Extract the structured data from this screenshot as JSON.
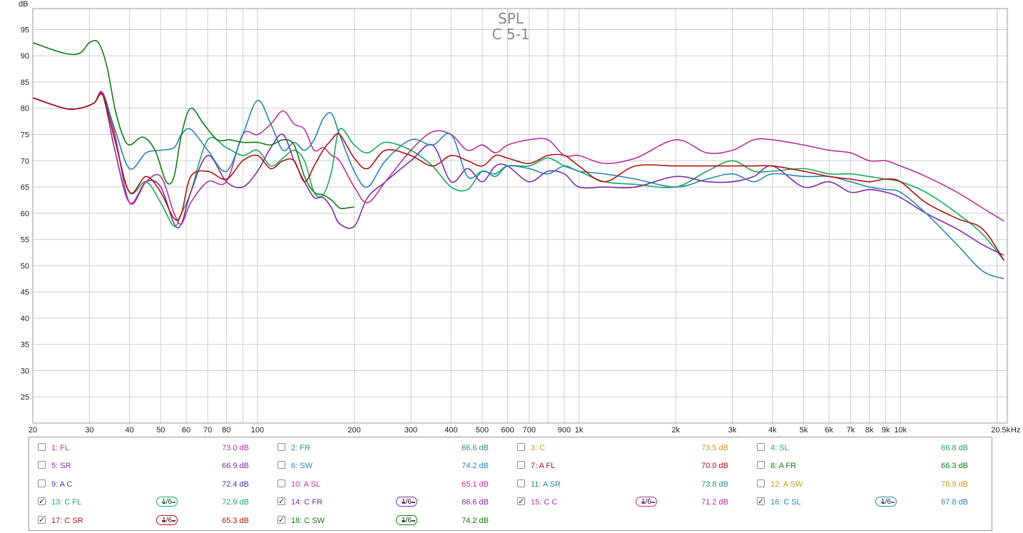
{
  "chart_data": {
    "type": "line",
    "title": "SPL",
    "subtitle": "C 5-1",
    "ylabel": "dB",
    "xlabel": "Hz",
    "xscale": "log",
    "xlim": [
      20,
      21500
    ],
    "ylim": [
      20,
      99
    ],
    "grid": true,
    "yticks": [
      25,
      30,
      35,
      40,
      45,
      50,
      55,
      60,
      65,
      70,
      75,
      80,
      85,
      90,
      95
    ],
    "xticks": [
      {
        "v": 20,
        "l": "20"
      },
      {
        "v": 30,
        "l": "30"
      },
      {
        "v": 40,
        "l": "40"
      },
      {
        "v": 50,
        "l": "50"
      },
      {
        "v": 60,
        "l": "60"
      },
      {
        "v": 70,
        "l": "70"
      },
      {
        "v": 80,
        "l": "80"
      },
      {
        "v": 100,
        "l": "100"
      },
      {
        "v": 200,
        "l": "200"
      },
      {
        "v": 300,
        "l": "300"
      },
      {
        "v": 400,
        "l": "400"
      },
      {
        "v": 500,
        "l": "500"
      },
      {
        "v": 600,
        "l": "600"
      },
      {
        "v": 700,
        "l": "700"
      },
      {
        "v": 900,
        "l": "900"
      },
      {
        "v": 1000,
        "l": "1k"
      },
      {
        "v": 2000,
        "l": "2k"
      },
      {
        "v": 3000,
        "l": "3k"
      },
      {
        "v": 4000,
        "l": "4k"
      },
      {
        "v": 5000,
        "l": "5k"
      },
      {
        "v": 6000,
        "l": "6k"
      },
      {
        "v": 7000,
        "l": "7k"
      },
      {
        "v": 8000,
        "l": "8k"
      },
      {
        "v": 9000,
        "l": "9k"
      },
      {
        "v": 10000,
        "l": "10k"
      },
      {
        "v": 20500,
        "l": "20.5k"
      }
    ],
    "series": [
      {
        "name": "13: C FL",
        "color": "#1aaa5a",
        "x": [
          20,
          25,
          28,
          31,
          33,
          36,
          40,
          45,
          50,
          55,
          58,
          62,
          70,
          80,
          90,
          100,
          110,
          120,
          130,
          140,
          150,
          160,
          170,
          180,
          200,
          220,
          250,
          300,
          350,
          400,
          450,
          500,
          550,
          600,
          700,
          800,
          900,
          1000,
          1200,
          1500,
          2000,
          2500,
          3000,
          3500,
          4000,
          5000,
          6000,
          7000,
          8000,
          9000,
          10000,
          12000,
          15000,
          18000,
          21000
        ],
        "y": [
          82,
          80,
          80,
          81,
          82.5,
          74,
          64,
          66,
          62,
          57.5,
          60,
          64,
          74,
          72.5,
          71,
          72,
          69,
          70.5,
          72,
          70,
          64,
          63.5,
          68,
          76,
          73,
          71.5,
          73.5,
          72,
          69,
          65,
          64.5,
          68,
          67,
          69,
          69,
          70.5,
          69,
          68,
          66,
          65.5,
          65,
          68,
          70,
          68,
          68,
          68.5,
          67.5,
          67.5,
          67,
          66.5,
          66,
          64,
          60,
          56,
          51
        ]
      },
      {
        "name": "14: C FR",
        "color": "#7a2ca8",
        "x": [
          20,
          25,
          28,
          31,
          33,
          36,
          40,
          45,
          50,
          55,
          58,
          62,
          70,
          80,
          90,
          100,
          110,
          120,
          130,
          140,
          150,
          160,
          170,
          180,
          200,
          220,
          250,
          300,
          350,
          400,
          450,
          500,
          550,
          600,
          700,
          800,
          900,
          1000,
          1200,
          1500,
          2000,
          2500,
          3000,
          3500,
          4000,
          5000,
          6000,
          7000,
          8000,
          9000,
          10000,
          12000,
          15000,
          18000,
          21000
        ],
        "y": [
          82,
          80,
          80,
          81,
          82.5,
          72,
          62,
          66,
          65,
          58,
          58,
          64,
          71,
          66,
          65,
          68,
          72.5,
          75,
          70,
          66,
          63,
          63,
          61,
          58,
          57.5,
          63,
          66,
          70,
          73,
          66,
          68.5,
          66,
          69,
          69,
          66,
          68,
          67.5,
          65,
          65,
          65,
          67,
          66,
          66,
          67,
          69,
          65,
          66,
          64,
          64.5,
          64,
          63,
          60,
          57,
          54,
          52
        ]
      },
      {
        "name": "15: C C",
        "color": "#b83298",
        "x": [
          20,
          25,
          28,
          31,
          33,
          36,
          40,
          45,
          50,
          55,
          58,
          62,
          70,
          80,
          90,
          100,
          110,
          120,
          130,
          140,
          150,
          160,
          170,
          180,
          200,
          220,
          250,
          300,
          350,
          400,
          450,
          500,
          550,
          600,
          700,
          800,
          900,
          1000,
          1200,
          1500,
          2000,
          2500,
          3000,
          3500,
          4000,
          5000,
          6000,
          7000,
          8000,
          9000,
          10000,
          12000,
          15000,
          18000,
          21000
        ],
        "y": [
          82,
          80,
          80,
          81,
          83,
          75,
          62,
          66,
          67,
          60,
          58,
          62,
          66,
          66,
          75,
          75,
          77,
          79.5,
          77,
          76,
          72,
          72.5,
          71,
          70,
          65,
          62,
          66,
          72,
          75.5,
          75,
          72,
          73,
          71.5,
          73,
          74,
          74,
          71,
          71,
          69.5,
          70.5,
          74,
          71.5,
          72,
          74,
          74,
          73,
          72,
          71.5,
          70,
          70,
          69,
          67,
          64,
          61,
          58.5
        ]
      },
      {
        "name": "16: C SL",
        "color": "#2a86b0",
        "x": [
          20,
          25,
          28,
          31,
          33,
          36,
          40,
          45,
          50,
          55,
          58,
          62,
          70,
          80,
          90,
          100,
          110,
          120,
          130,
          140,
          150,
          160,
          170,
          180,
          200,
          220,
          250,
          300,
          350,
          400,
          450,
          500,
          550,
          600,
          700,
          800,
          900,
          1000,
          1200,
          1500,
          2000,
          2500,
          3000,
          3500,
          4000,
          5000,
          6000,
          7000,
          8000,
          9000,
          10000,
          12000,
          15000,
          18000,
          21000
        ],
        "y": [
          82,
          80,
          80,
          81,
          82.5,
          76,
          68.5,
          71.5,
          72,
          72.5,
          75,
          76,
          72,
          68,
          75,
          81.5,
          77,
          72,
          73.5,
          72,
          74,
          78,
          79,
          75,
          68,
          65,
          70,
          74,
          73,
          75,
          67,
          68,
          67.5,
          69,
          68.5,
          67.5,
          69,
          68,
          67.5,
          66.5,
          65,
          66.5,
          67.5,
          66,
          67.5,
          67,
          67,
          66,
          65,
          64.5,
          64,
          60,
          54,
          49,
          47.5
        ]
      },
      {
        "name": "17: C SR",
        "color": "#b01212",
        "x": [
          20,
          25,
          28,
          31,
          33,
          36,
          40,
          45,
          50,
          55,
          58,
          62,
          70,
          80,
          90,
          100,
          110,
          120,
          130,
          140,
          150,
          160,
          170,
          180,
          200,
          220,
          250,
          300,
          350,
          400,
          450,
          500,
          550,
          600,
          700,
          800,
          900,
          1000,
          1200,
          1500,
          2000,
          2500,
          3000,
          3500,
          4000,
          5000,
          6000,
          7000,
          8000,
          9000,
          10000,
          12000,
          15000,
          18000,
          21000
        ],
        "y": [
          82,
          80,
          80,
          81,
          82.5,
          74,
          64,
          67,
          64,
          59,
          60,
          67,
          68,
          66.5,
          70,
          71,
          68.5,
          70,
          70,
          66,
          69,
          72,
          74,
          75,
          70.5,
          68.5,
          72,
          71,
          69,
          71,
          70,
          69,
          71,
          70.5,
          69.5,
          71,
          71,
          69,
          66,
          69,
          69,
          69,
          69,
          69,
          69,
          68,
          67,
          66.5,
          66,
          66.5,
          66,
          62,
          59,
          57,
          51
        ]
      },
      {
        "name": "18: C SW",
        "color": "#137a13",
        "x": [
          20,
          25,
          28,
          30,
          32,
          34,
          36,
          38,
          40,
          44,
          48,
          52,
          55,
          58,
          62,
          68,
          75,
          82,
          90,
          100,
          110,
          120,
          130,
          140,
          150,
          160,
          170,
          180,
          190,
          200
        ],
        "y": [
          92.5,
          90.5,
          90.5,
          92.5,
          92.5,
          88,
          80,
          75,
          73,
          74.5,
          72,
          66,
          67,
          75,
          80,
          77,
          74,
          74,
          73.5,
          73.5,
          73,
          74,
          73,
          67,
          64,
          63.5,
          62.5,
          61,
          61,
          61.2
        ]
      }
    ]
  },
  "legend": {
    "items": [
      {
        "label": "1: FL",
        "value": "73.0 dB",
        "color": "#b83298",
        "checked": false
      },
      {
        "label": "2: FR",
        "value": "66.6 dB",
        "color": "#2a8f8f",
        "checked": false
      },
      {
        "label": "3: C",
        "value": "73.5 dB",
        "color": "#c99a14",
        "checked": false
      },
      {
        "label": "4: SL",
        "value": "66.8 dB",
        "color": "#1aaa5a",
        "checked": false
      },
      {
        "label": "5: SR",
        "value": "66.9 dB",
        "color": "#7a2ca8",
        "checked": false
      },
      {
        "label": "6: SW",
        "value": "74.2 dB",
        "color": "#2a86b0",
        "checked": false
      },
      {
        "label": "7: A FL",
        "value": "70.0 dB",
        "color": "#b01212",
        "checked": false
      },
      {
        "label": "8: A FR",
        "value": "66.3 dB",
        "color": "#137a13",
        "checked": false
      },
      {
        "label": "9: A C",
        "value": "72.4 dB",
        "color": "#3a3ab0",
        "checked": false
      },
      {
        "label": "10: A SL",
        "value": "65.1 dB",
        "color": "#b83298",
        "checked": false
      },
      {
        "label": "11: A SR",
        "value": "73.8 dB",
        "color": "#2a8f8f",
        "checked": false
      },
      {
        "label": "12: A SW",
        "value": "78.9 dB",
        "color": "#c99a14",
        "checked": false
      },
      {
        "label": "13: C FL",
        "value": "72.9 dB",
        "color": "#1aaa5a",
        "checked": true,
        "smoothing": "1/6"
      },
      {
        "label": "14: C FR",
        "value": "66.6 dB",
        "color": "#7a2ca8",
        "checked": true,
        "smoothing": "1/6"
      },
      {
        "label": "15: C C",
        "value": "71.2 dB",
        "color": "#b83298",
        "checked": true,
        "smoothing": "1/6"
      },
      {
        "label": "16: C SL",
        "value": "67.8 dB",
        "color": "#2a86b0",
        "checked": true,
        "smoothing": "1/6"
      },
      {
        "label": "17: C SR",
        "value": "65.3 dB",
        "color": "#b01212",
        "checked": true,
        "smoothing": "1/6"
      },
      {
        "label": "18: C SW",
        "value": "74.2 dB",
        "color": "#137a13",
        "checked": true,
        "smoothing": "1/6"
      }
    ]
  }
}
